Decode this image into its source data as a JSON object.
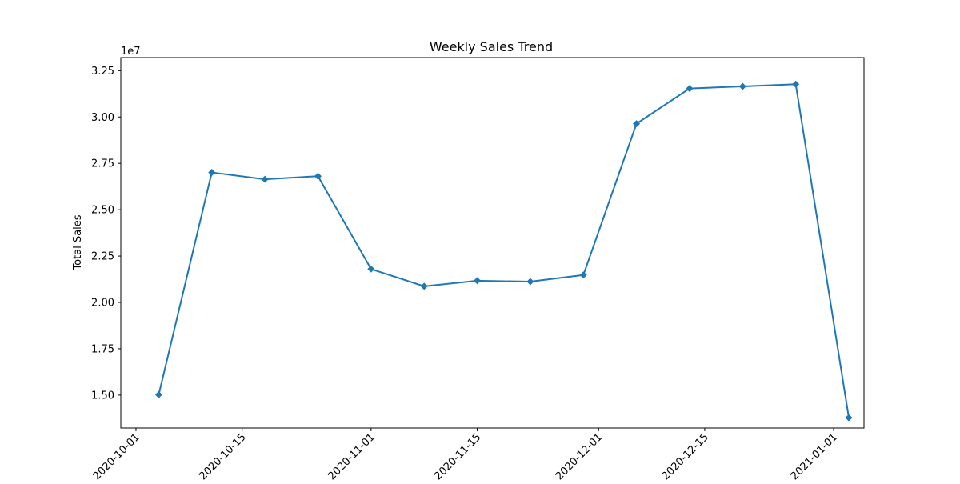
{
  "chart_data": {
    "type": "line",
    "title": "Weekly Sales Trend",
    "xlabel": "",
    "ylabel": "Total Sales",
    "y_offset_label": "1e7",
    "y_scale": 10000000,
    "x_range": [
      "2020-09-29",
      "2021-01-05"
    ],
    "y_range": [
      13225000,
      33205000
    ],
    "grid": false,
    "marker": "diamond",
    "color": "#1f77b4",
    "series": [
      {
        "x": [
          "2020-10-04",
          "2020-10-11",
          "2020-10-18",
          "2020-10-25",
          "2020-11-01",
          "2020-11-08",
          "2020-11-15",
          "2020-11-22",
          "2020-11-29",
          "2020-12-06",
          "2020-12-13",
          "2020-12-20",
          "2020-12-27",
          "2021-01-03"
        ],
        "y": [
          15020000,
          27010000,
          26640000,
          26810000,
          21800000,
          20870000,
          21170000,
          21120000,
          21480000,
          29640000,
          31540000,
          31650000,
          31770000,
          13780000
        ]
      }
    ],
    "x_ticks": [
      {
        "date": "2020-10-01",
        "label": "2020-10-01"
      },
      {
        "date": "2020-10-15",
        "label": "2020-10-15"
      },
      {
        "date": "2020-11-01",
        "label": "2020-11-01"
      },
      {
        "date": "2020-11-15",
        "label": "2020-11-15"
      },
      {
        "date": "2020-12-01",
        "label": "2020-12-01"
      },
      {
        "date": "2020-12-15",
        "label": "2020-12-15"
      },
      {
        "date": "2021-01-01",
        "label": "2021-01-01"
      }
    ],
    "y_ticks": [
      {
        "value": 15000000,
        "label": "1.50"
      },
      {
        "value": 17500000,
        "label": "1.75"
      },
      {
        "value": 20000000,
        "label": "2.00"
      },
      {
        "value": 22500000,
        "label": "2.25"
      },
      {
        "value": 25000000,
        "label": "2.50"
      },
      {
        "value": 27500000,
        "label": "2.75"
      },
      {
        "value": 30000000,
        "label": "3.00"
      },
      {
        "value": 32500000,
        "label": "3.25"
      }
    ]
  }
}
